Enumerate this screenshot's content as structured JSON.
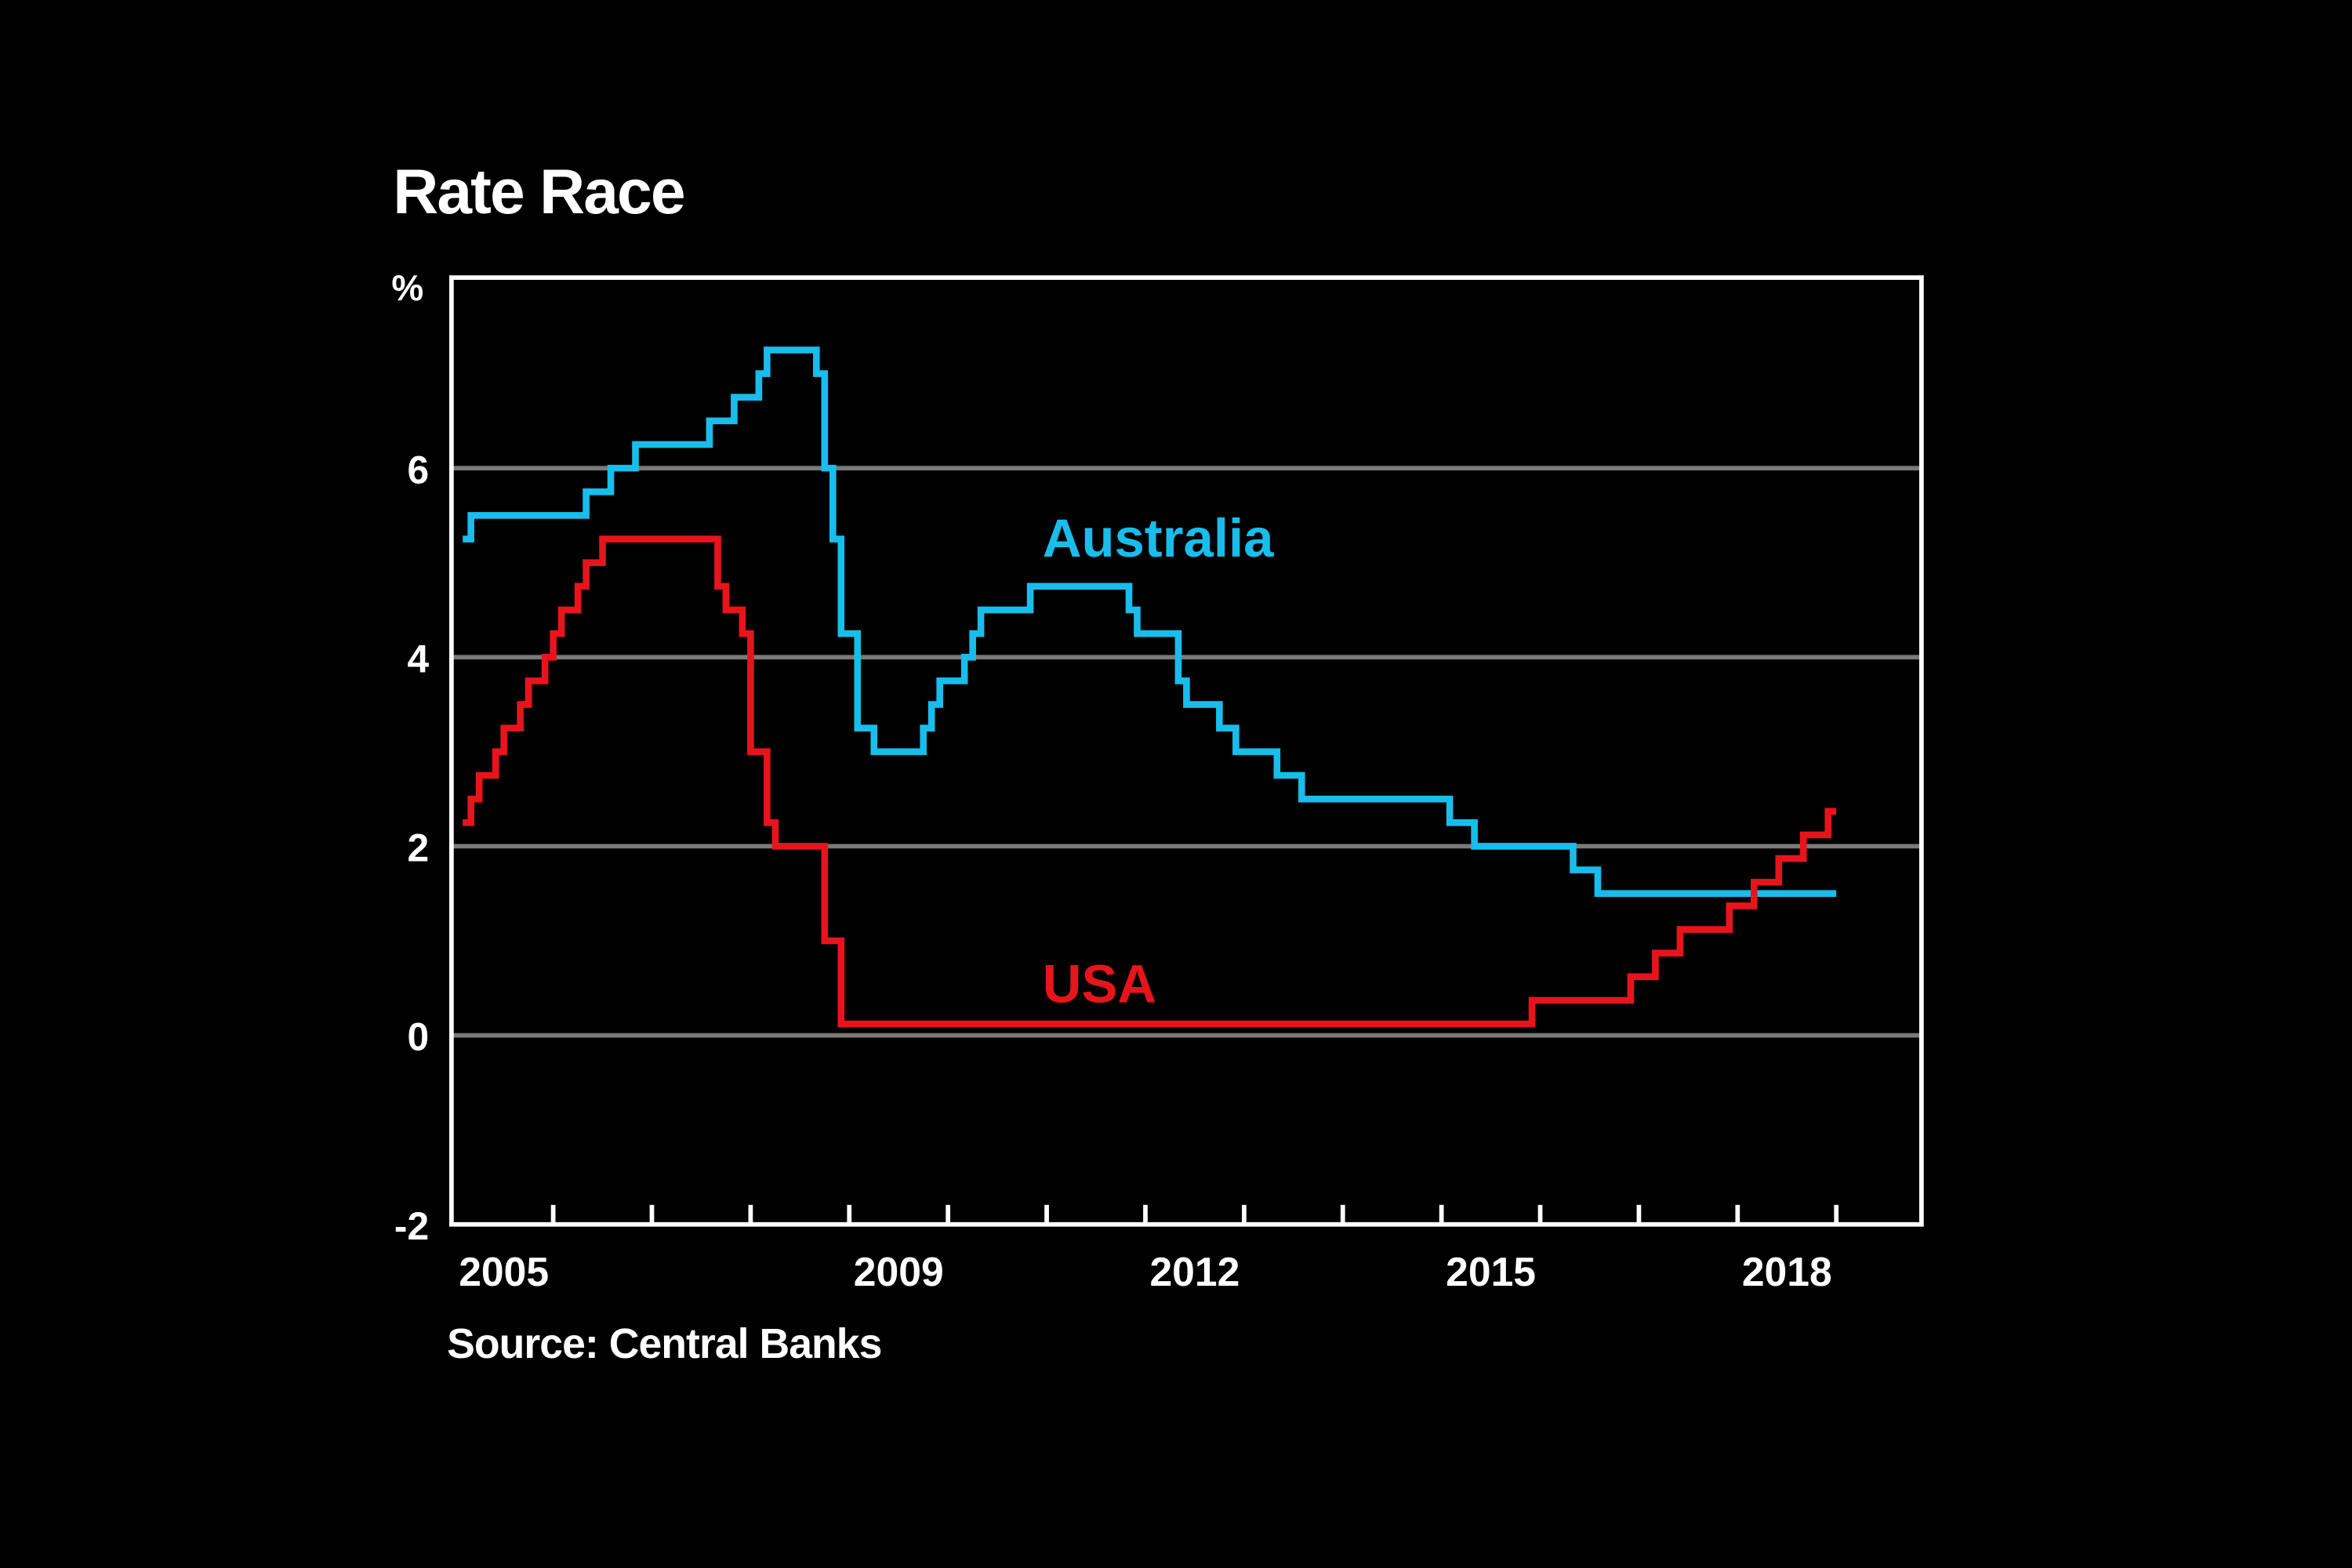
{
  "chart_data": {
    "type": "line",
    "step": true,
    "title": "Rate Race",
    "ylabel": "%",
    "source": "Source: Central Banks",
    "ylim": [
      -2,
      8
    ],
    "xlim": [
      "2005-01",
      "2019-11"
    ],
    "yticks": [
      -2,
      0,
      2,
      4,
      6
    ],
    "gridlines_y": [
      0,
      2,
      4,
      6
    ],
    "xtick_labels": [
      "2005",
      "2009",
      "2012",
      "2015",
      "2018"
    ],
    "xtick_marks_years": [
      2006,
      2007,
      2008,
      2009,
      2010,
      2011,
      2012,
      2013,
      2014,
      2015,
      2016,
      2017,
      2018,
      2019
    ],
    "background": "#000000",
    "series": [
      {
        "name": "Australia",
        "color": "#19BDEB",
        "points": [
          [
            "2005-02",
            5.25
          ],
          [
            "2005-03",
            5.5
          ],
          [
            "2006-05",
            5.75
          ],
          [
            "2006-08",
            6.0
          ],
          [
            "2006-11",
            6.25
          ],
          [
            "2007-08",
            6.5
          ],
          [
            "2007-11",
            6.75
          ],
          [
            "2008-02",
            7.0
          ],
          [
            "2008-03",
            7.25
          ],
          [
            "2008-09",
            7.0
          ],
          [
            "2008-10",
            6.0
          ],
          [
            "2008-11",
            5.25
          ],
          [
            "2008-12",
            4.25
          ],
          [
            "2009-02",
            3.25
          ],
          [
            "2009-04",
            3.0
          ],
          [
            "2009-10",
            3.25
          ],
          [
            "2009-11",
            3.5
          ],
          [
            "2009-12",
            3.75
          ],
          [
            "2010-03",
            4.0
          ],
          [
            "2010-04",
            4.25
          ],
          [
            "2010-05",
            4.5
          ],
          [
            "2010-11",
            4.75
          ],
          [
            "2011-11",
            4.5
          ],
          [
            "2011-12",
            4.25
          ],
          [
            "2012-05",
            3.75
          ],
          [
            "2012-06",
            3.5
          ],
          [
            "2012-10",
            3.25
          ],
          [
            "2012-12",
            3.0
          ],
          [
            "2013-05",
            2.75
          ],
          [
            "2013-08",
            2.5
          ],
          [
            "2015-02",
            2.25
          ],
          [
            "2015-05",
            2.0
          ],
          [
            "2016-05",
            1.75
          ],
          [
            "2016-08",
            1.5
          ],
          [
            "2019-01",
            1.5
          ]
        ]
      },
      {
        "name": "USA",
        "color": "#E8141C",
        "points": [
          [
            "2005-02",
            2.25
          ],
          [
            "2005-03",
            2.5
          ],
          [
            "2005-04",
            2.75
          ],
          [
            "2005-06",
            3.0
          ],
          [
            "2005-07",
            3.25
          ],
          [
            "2005-09",
            3.5
          ],
          [
            "2005-10",
            3.75
          ],
          [
            "2005-12",
            4.0
          ],
          [
            "2006-01",
            4.25
          ],
          [
            "2006-02",
            4.5
          ],
          [
            "2006-04",
            4.75
          ],
          [
            "2006-05",
            5.0
          ],
          [
            "2006-07",
            5.25
          ],
          [
            "2007-09",
            4.75
          ],
          [
            "2007-10",
            4.5
          ],
          [
            "2007-12",
            4.25
          ],
          [
            "2008-01",
            3.0
          ],
          [
            "2008-03",
            2.25
          ],
          [
            "2008-04",
            2.0
          ],
          [
            "2008-10",
            1.0
          ],
          [
            "2008-12",
            0.12
          ],
          [
            "2015-12",
            0.37
          ],
          [
            "2016-12",
            0.62
          ],
          [
            "2017-03",
            0.87
          ],
          [
            "2017-06",
            1.12
          ],
          [
            "2017-12",
            1.37
          ],
          [
            "2018-03",
            1.62
          ],
          [
            "2018-06",
            1.87
          ],
          [
            "2018-09",
            2.12
          ],
          [
            "2018-12",
            2.37
          ],
          [
            "2019-01",
            2.37
          ]
        ]
      }
    ]
  }
}
